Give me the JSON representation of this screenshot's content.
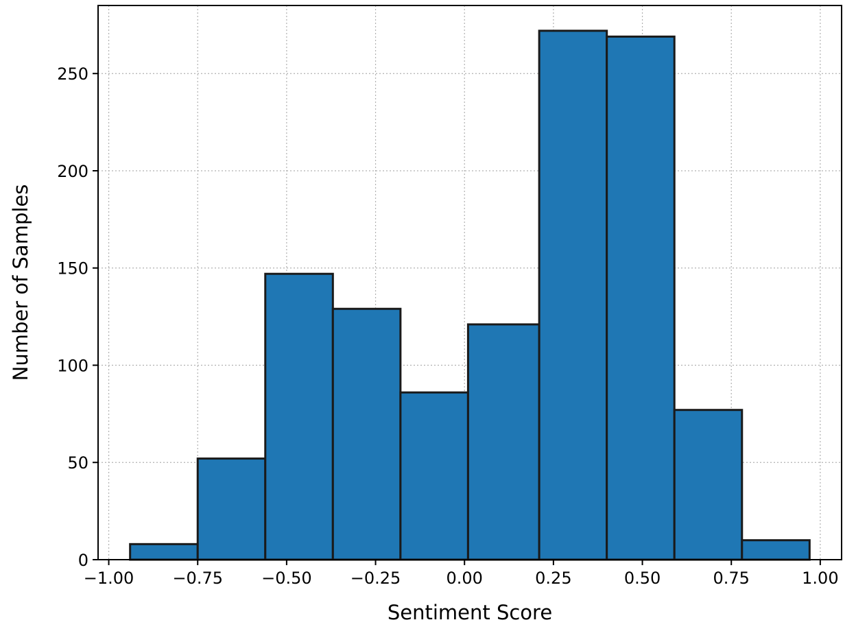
{
  "chart_data": {
    "type": "bar",
    "xlabel": "Sentiment Score",
    "ylabel": "Number of Samples",
    "xlim": [
      -1.03,
      1.06
    ],
    "ylim": [
      0,
      285
    ],
    "grid": true,
    "bar_color": "#1f77b4",
    "edge_color": "#1a1a1a",
    "x_ticks": [
      -1.0,
      -0.75,
      -0.5,
      -0.25,
      0.0,
      0.25,
      0.5,
      0.75,
      1.0
    ],
    "x_tick_labels": [
      "−1.00",
      "−0.75",
      "−0.50",
      "−0.25",
      "0.00",
      "0.25",
      "0.50",
      "0.75",
      "1.00"
    ],
    "y_ticks": [
      0,
      50,
      100,
      150,
      200,
      250
    ],
    "y_tick_labels": [
      "0",
      "50",
      "100",
      "150",
      "200",
      "250"
    ],
    "bins": [
      {
        "x0": -0.94,
        "x1": -0.75,
        "count": 8
      },
      {
        "x0": -0.75,
        "x1": -0.56,
        "count": 52
      },
      {
        "x0": -0.56,
        "x1": -0.37,
        "count": 147
      },
      {
        "x0": -0.37,
        "x1": -0.18,
        "count": 129
      },
      {
        "x0": -0.18,
        "x1": 0.01,
        "count": 86
      },
      {
        "x0": 0.01,
        "x1": 0.21,
        "count": 121
      },
      {
        "x0": 0.21,
        "x1": 0.4,
        "count": 272
      },
      {
        "x0": 0.4,
        "x1": 0.59,
        "count": 269
      },
      {
        "x0": 0.59,
        "x1": 0.78,
        "count": 77
      },
      {
        "x0": 0.78,
        "x1": 0.97,
        "count": 10
      }
    ]
  }
}
